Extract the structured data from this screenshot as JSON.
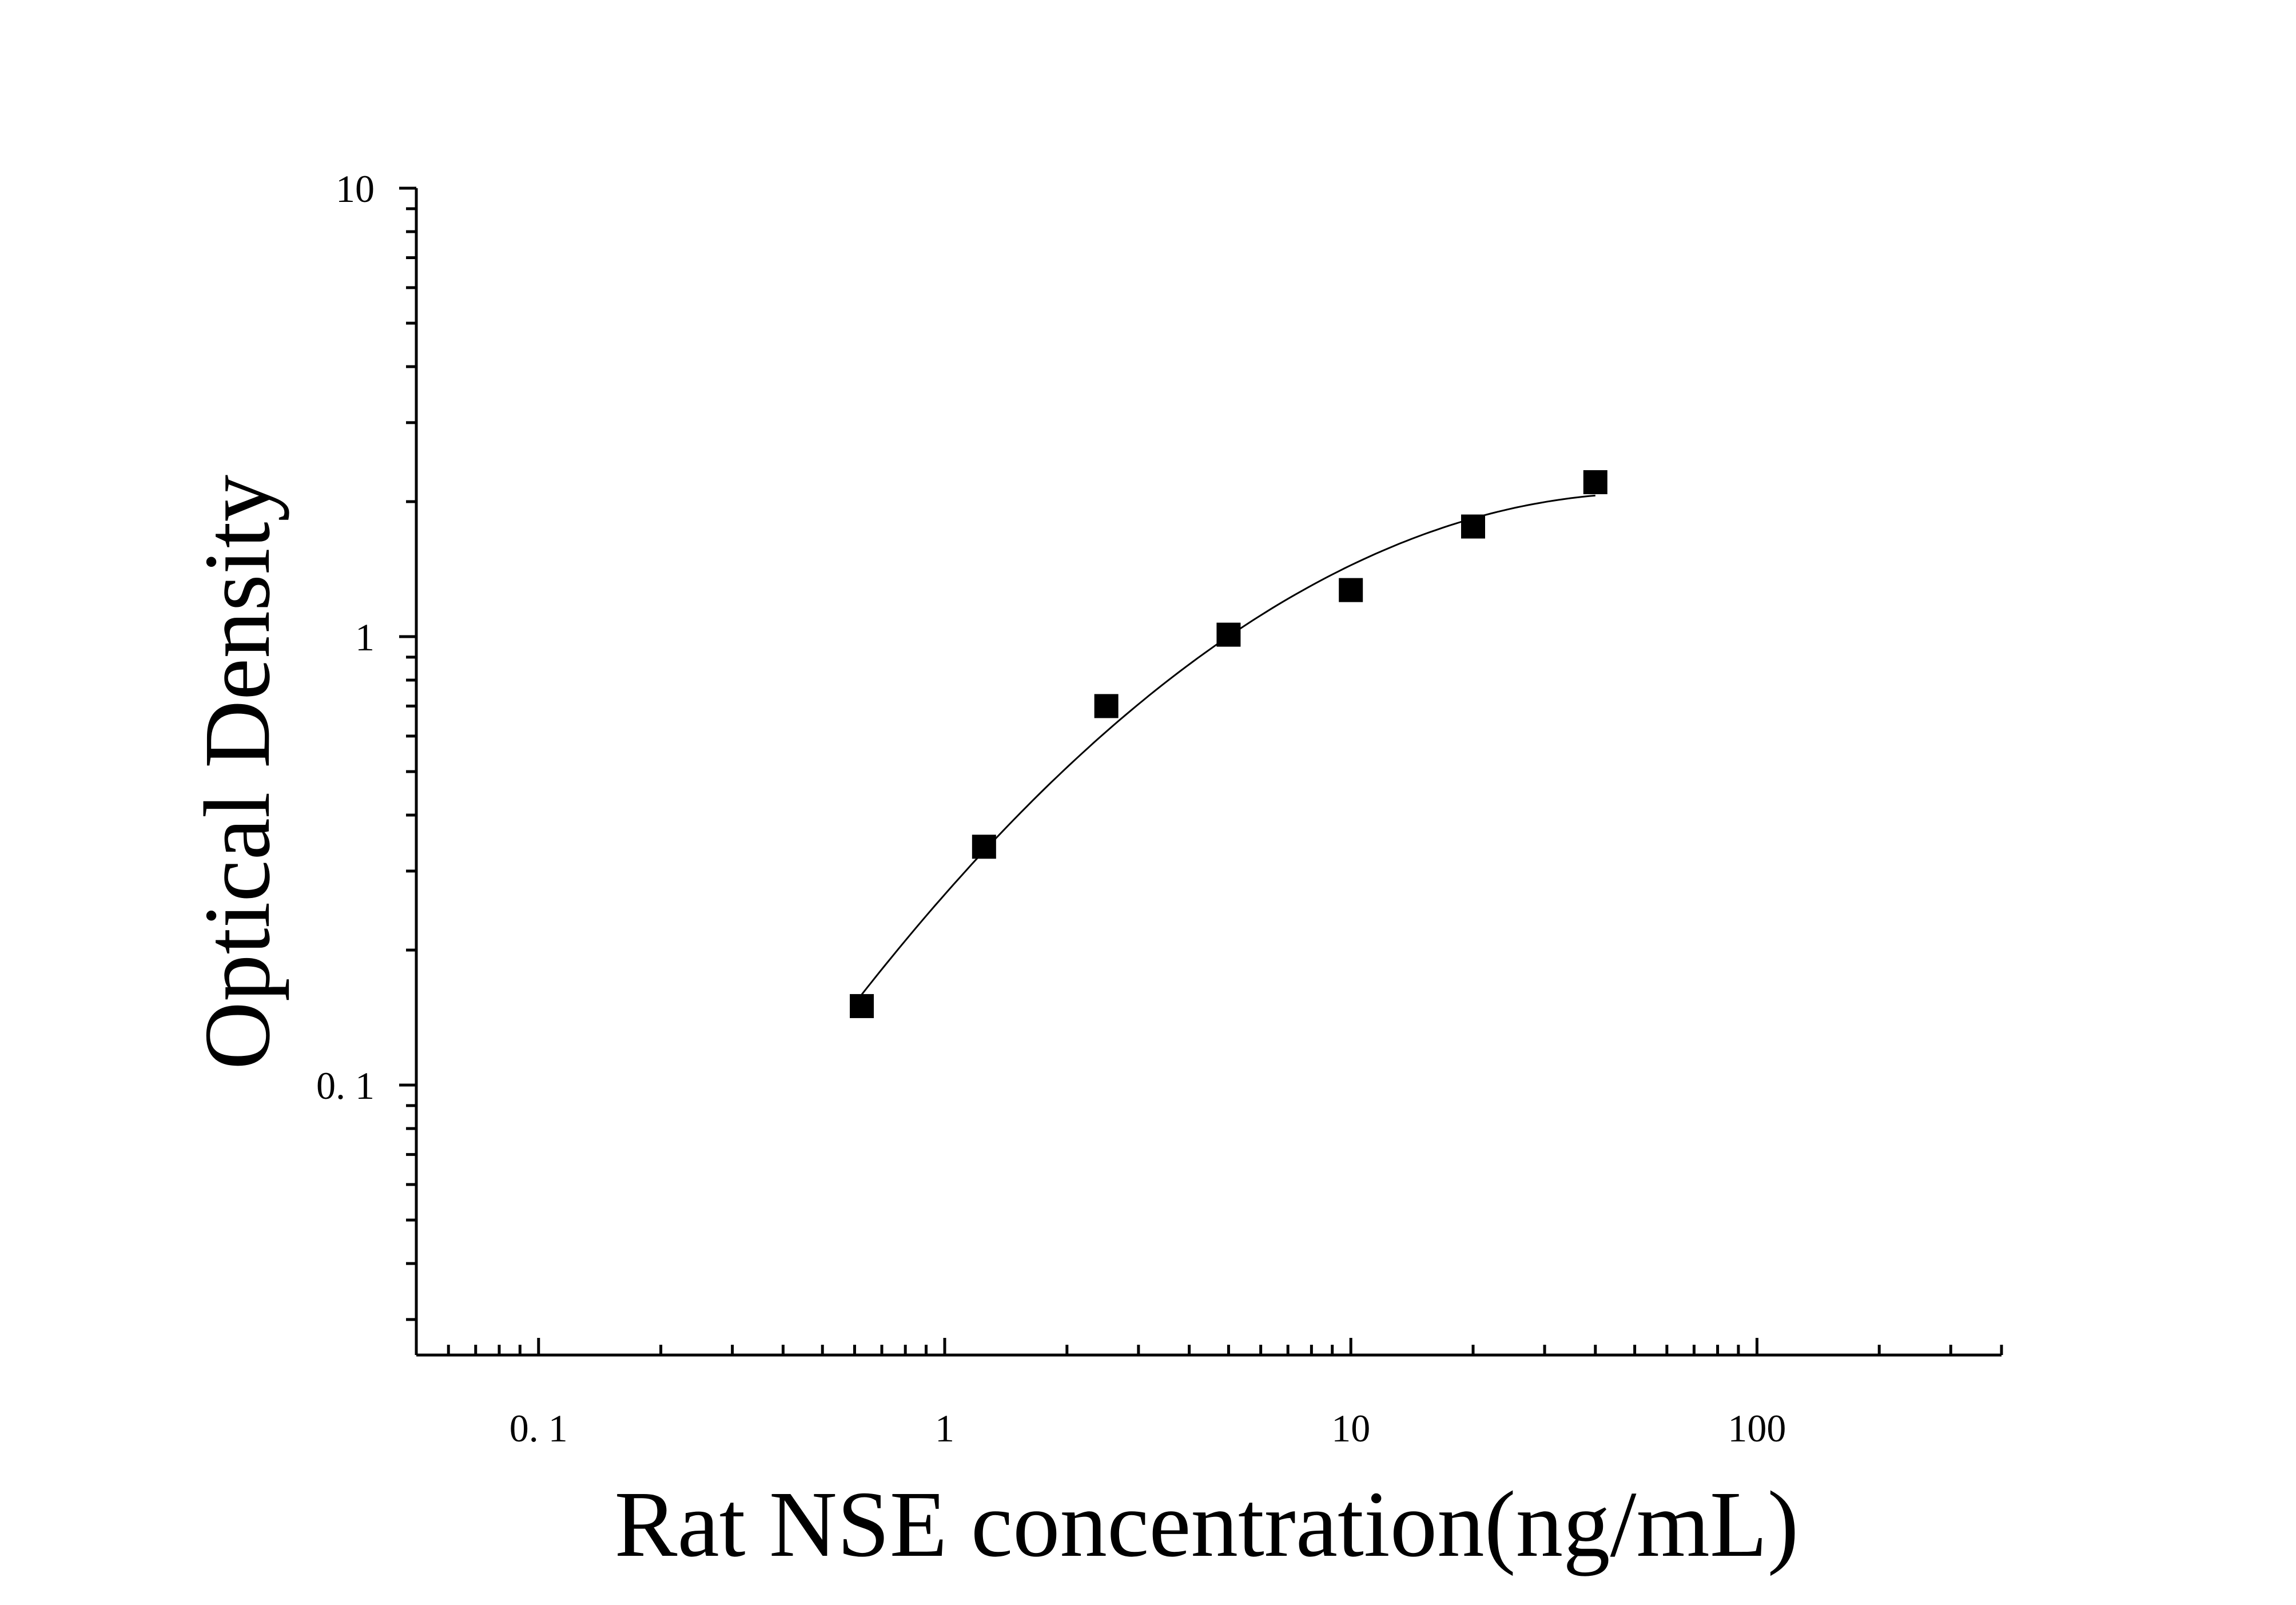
{
  "chart_data": {
    "type": "scatter",
    "xlabel": "Rat NSE concentration(ng/mL)",
    "ylabel": "Optical Density",
    "x_scale": "log",
    "y_scale": "log",
    "xlim": [
      0.05,
      400
    ],
    "ylim": [
      0.025,
      10
    ],
    "x_ticks": [
      {
        "value": 0.1,
        "label": "0. 1"
      },
      {
        "value": 1,
        "label": "1"
      },
      {
        "value": 10,
        "label": "10"
      },
      {
        "value": 100,
        "label": "100"
      }
    ],
    "y_ticks": [
      {
        "value": 0.1,
        "label": "0. 1"
      },
      {
        "value": 1,
        "label": "1"
      },
      {
        "value": 10,
        "label": "10"
      }
    ],
    "grid": false,
    "series": [
      {
        "x": [
          0.625,
          1.25,
          2.5,
          5,
          10,
          20,
          40
        ],
        "y": [
          0.15,
          0.34,
          0.7,
          1.01,
          1.27,
          1.76,
          2.21
        ]
      }
    ],
    "fit_curve": true,
    "colors": {
      "marker": "#000000",
      "line": "#000000",
      "background": "#ffffff"
    }
  }
}
